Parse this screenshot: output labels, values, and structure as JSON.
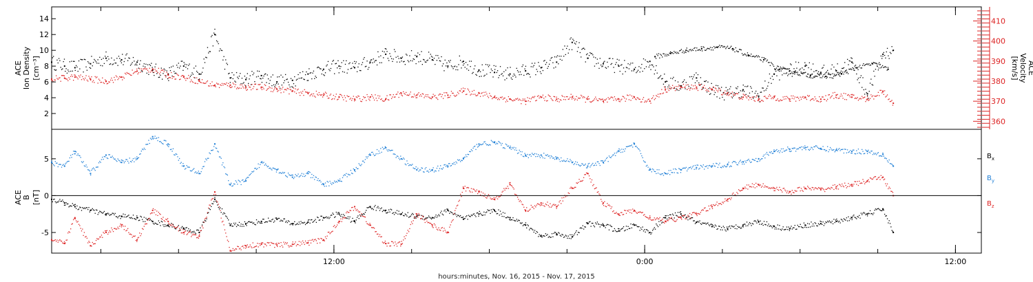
{
  "chart_data": {
    "type": "scatter",
    "x_axis": {
      "tick_labels": [
        "12:00",
        "0:00",
        "12:00"
      ],
      "label": "hours:minutes, Nov. 16, 2015 - Nov. 17, 2015",
      "hours_range": [
        1.1,
        37.0
      ],
      "tick_hours": [
        12,
        24,
        36
      ]
    },
    "panels": [
      {
        "name": "density-velocity",
        "left_axis": {
          "label_lines": [
            "ACE",
            "Ion Density",
            "[cm⁻³]"
          ],
          "ylim": [
            0,
            15.5
          ],
          "ticks": [
            2,
            4,
            6,
            8,
            10,
            12,
            14
          ],
          "tick_labels": [
            "2",
            "4",
            "6",
            "8",
            "10",
            "12",
            "14"
          ],
          "color": "#000000"
        },
        "right_axis": {
          "label_lines": [
            "ACE",
            "Velocity",
            "[km/s]"
          ],
          "ylim": [
            356,
            417
          ],
          "ticks": [
            360,
            370,
            380,
            390,
            400,
            410
          ],
          "tick_labels": [
            "360",
            "370",
            "380",
            "390",
            "400",
            "410"
          ],
          "color": "#dd2222"
        },
        "series": [
          {
            "axis": "left",
            "color": "#000000",
            "hours": [
              1.1,
              1.6,
              2.0,
              2.6,
              3.2,
              3.8,
              4.4,
              5.0,
              5.6,
              6.2,
              6.8,
              7.4,
              8.0,
              8.6,
              9.2,
              9.8,
              10.4,
              11.0,
              11.6,
              12.2,
              12.8,
              13.4,
              14.0,
              14.6,
              15.2,
              15.8,
              16.4,
              17.0,
              17.6,
              18.2,
              18.8,
              19.4,
              20.0,
              20.6,
              21.2,
              21.8,
              22.4,
              23.0,
              23.6,
              24.2,
              24.8,
              25.4,
              26.0,
              26.6,
              27.2,
              27.8,
              28.4,
              29.0,
              29.6,
              30.2,
              30.8,
              31.4,
              32.0,
              32.6,
              33.2,
              33.6
            ],
            "values": [
              8.5,
              8.0,
              7.8,
              8.3,
              9.0,
              8.8,
              8.5,
              7.5,
              7.0,
              8.0,
              7.0,
              12.0,
              6.5,
              6.3,
              6.8,
              6.0,
              6.2,
              7.0,
              7.6,
              8.0,
              7.8,
              8.5,
              9.5,
              9.0,
              9.2,
              8.8,
              8.0,
              8.6,
              7.5,
              7.2,
              7.0,
              7.4,
              7.8,
              8.5,
              11.0,
              9.0,
              8.3,
              8.0,
              7.6,
              8.6,
              6.0,
              5.5,
              6.5,
              5.0,
              4.5,
              5.0,
              4.2,
              7.0,
              7.4,
              8.0,
              7.2,
              7.4,
              8.5,
              4.5,
              9.5,
              10.0
            ],
            "density_note": "",
            "extra_hours": [
              24.4,
              25.0,
              25.6,
              26.2,
              26.8,
              27.4,
              28.0,
              28.6,
              29.2,
              29.8,
              30.4,
              31.0,
              31.6,
              32.2,
              32.8,
              33.4
            ],
            "extra_values": [
              9.2,
              9.6,
              10.0,
              10.2,
              10.4,
              10.2,
              9.4,
              8.8,
              7.6,
              7.2,
              6.8,
              6.7,
              7.0,
              7.8,
              8.3,
              7.6
            ]
          },
          {
            "axis": "right",
            "color": "#dd2222",
            "hours": [
              1.1,
              1.6,
              2.0,
              2.6,
              3.2,
              3.8,
              4.4,
              5.0,
              5.6,
              6.2,
              6.8,
              7.4,
              8.0,
              8.6,
              9.2,
              9.8,
              10.4,
              11.0,
              11.6,
              12.2,
              12.8,
              13.4,
              14.0,
              14.6,
              15.2,
              15.8,
              16.4,
              17.0,
              17.6,
              18.2,
              18.8,
              19.4,
              20.0,
              20.6,
              21.2,
              21.8,
              22.4,
              23.0,
              23.6,
              24.2,
              24.8,
              25.4,
              26.0,
              26.6,
              27.2,
              27.8,
              28.4,
              29.0,
              29.6,
              30.2,
              30.8,
              31.4,
              32.0,
              32.6,
              33.2,
              33.6
            ],
            "values": [
              381,
              381.5,
              382,
              381,
              380,
              382,
              385,
              386,
              383,
              382,
              380,
              378,
              378,
              377,
              377,
              376,
              375,
              374,
              373,
              372,
              371,
              372,
              371,
              374,
              373,
              372,
              373,
              375,
              374,
              372,
              371,
              370,
              372,
              371,
              372,
              371,
              370,
              371,
              372,
              370,
              376,
              377,
              377,
              376,
              374,
              372,
              371,
              372,
              371,
              372,
              371,
              373,
              372,
              371,
              375,
              369
            ]
          }
        ]
      },
      {
        "name": "magnetic-field",
        "left_axis": {
          "label_lines": [
            "ACE",
            "B",
            "[nT]"
          ],
          "ylim": [
            -7.8,
            9.0
          ],
          "ticks": [
            -5,
            0,
            5
          ],
          "tick_labels": [
            "-5",
            "0",
            "5"
          ],
          "zero_line": true,
          "color": "#000000"
        },
        "legend": [
          {
            "base": "B",
            "sub": "x",
            "color": "#000000"
          },
          {
            "base": "B",
            "sub": "y",
            "color": "#1f7fd6"
          },
          {
            "base": "B",
            "sub": "z",
            "color": "#dd2222"
          }
        ],
        "series": [
          {
            "name": "Bx",
            "color": "#000000",
            "hours": [
              1.1,
              1.6,
              2.0,
              2.6,
              3.2,
              3.8,
              4.4,
              5.0,
              5.6,
              6.2,
              6.8,
              7.4,
              8.0,
              8.6,
              9.2,
              9.8,
              10.4,
              11.0,
              11.6,
              12.2,
              12.8,
              13.4,
              14.0,
              14.6,
              15.2,
              15.8,
              16.4,
              17.0,
              17.6,
              18.2,
              18.8,
              19.4,
              20.0,
              20.6,
              21.2,
              21.8,
              22.4,
              23.0,
              23.6,
              24.2,
              24.8,
              25.4,
              26.0,
              26.6,
              27.2,
              27.8,
              28.4,
              29.0,
              29.6,
              30.2,
              30.8,
              31.4,
              32.0,
              32.6,
              33.2,
              33.6
            ],
            "values": [
              -0.5,
              -1.0,
              -1.5,
              -2.0,
              -2.5,
              -2.8,
              -3.0,
              -3.5,
              -4.0,
              -4.5,
              -5.0,
              -0.5,
              -4.0,
              -3.8,
              -3.5,
              -3.2,
              -3.8,
              -3.6,
              -3.0,
              -2.5,
              -3.5,
              -1.5,
              -2.0,
              -2.5,
              -2.8,
              -3.0,
              -2.0,
              -3.2,
              -2.5,
              -2.0,
              -3.0,
              -4.0,
              -5.5,
              -5.2,
              -5.6,
              -3.8,
              -4.0,
              -4.8,
              -4.0,
              -5.0,
              -3.0,
              -2.5,
              -3.6,
              -4.2,
              -4.5,
              -4.0,
              -3.5,
              -4.2,
              -4.5,
              -4.0,
              -3.8,
              -3.5,
              -3.0,
              -2.5,
              -1.8,
              -5.0
            ]
          },
          {
            "name": "By",
            "color": "#1f7fd6",
            "hours": [
              1.1,
              1.6,
              2.0,
              2.6,
              3.2,
              3.8,
              4.4,
              5.0,
              5.6,
              6.2,
              6.8,
              7.4,
              8.0,
              8.6,
              9.2,
              9.8,
              10.4,
              11.0,
              11.6,
              12.2,
              12.8,
              13.4,
              14.0,
              14.6,
              15.2,
              15.8,
              16.4,
              17.0,
              17.6,
              18.2,
              18.8,
              19.4,
              20.0,
              20.6,
              21.2,
              21.8,
              22.4,
              23.0,
              23.6,
              24.2,
              24.8,
              25.4,
              26.0,
              26.6,
              27.2,
              27.8,
              28.4,
              29.0,
              29.6,
              30.2,
              30.8,
              31.4,
              32.0,
              32.6,
              33.2,
              33.6
            ],
            "values": [
              4.5,
              4.0,
              6.0,
              3.0,
              5.5,
              4.5,
              5.0,
              8.0,
              7.0,
              4.0,
              3.0,
              7.0,
              1.5,
              2.0,
              4.5,
              3.5,
              2.5,
              3.0,
              1.5,
              2.0,
              3.5,
              5.5,
              6.5,
              5.0,
              3.5,
              3.5,
              4.0,
              5.0,
              7.0,
              7.2,
              6.5,
              5.5,
              5.5,
              5.0,
              4.5,
              4.0,
              4.5,
              6.0,
              7.0,
              3.5,
              3.0,
              3.5,
              3.8,
              4.0,
              4.2,
              4.6,
              5.0,
              6.0,
              6.3,
              6.5,
              6.4,
              6.2,
              6.0,
              6.0,
              5.6,
              4.0
            ]
          },
          {
            "name": "Bz",
            "color": "#dd2222",
            "hours": [
              1.1,
              1.6,
              2.0,
              2.6,
              3.2,
              3.8,
              4.4,
              5.0,
              5.6,
              6.2,
              6.8,
              7.4,
              8.0,
              8.6,
              9.2,
              9.8,
              10.4,
              11.0,
              11.6,
              12.2,
              12.8,
              13.4,
              14.0,
              14.6,
              15.2,
              15.8,
              16.4,
              17.0,
              17.6,
              18.2,
              18.8,
              19.4,
              20.0,
              20.6,
              21.2,
              21.8,
              22.4,
              23.0,
              23.6,
              24.2,
              24.8,
              25.4,
              26.0,
              26.6,
              27.2,
              27.8,
              28.4,
              29.0,
              29.6,
              30.2,
              30.8,
              31.4,
              32.0,
              32.6,
              33.2,
              33.6
            ],
            "values": [
              -6.0,
              -6.5,
              -3.0,
              -6.8,
              -5.0,
              -4.0,
              -6.0,
              -2.0,
              -3.5,
              -5.0,
              -5.5,
              0.5,
              -7.5,
              -6.8,
              -6.6,
              -6.7,
              -6.6,
              -6.4,
              -6.0,
              -3.5,
              -1.5,
              -4.0,
              -6.5,
              -6.6,
              -2.5,
              -4.0,
              -5.0,
              1.0,
              0.5,
              -0.5,
              1.5,
              -2.0,
              -1.0,
              -1.5,
              1.0,
              3.0,
              -1.0,
              -2.5,
              -2.0,
              -3.0,
              -3.5,
              -3.0,
              -2.5,
              -1.5,
              -0.5,
              1.0,
              1.5,
              1.0,
              0.5,
              1.0,
              0.8,
              1.2,
              1.5,
              2.0,
              2.5,
              0.0
            ]
          }
        ]
      }
    ]
  }
}
